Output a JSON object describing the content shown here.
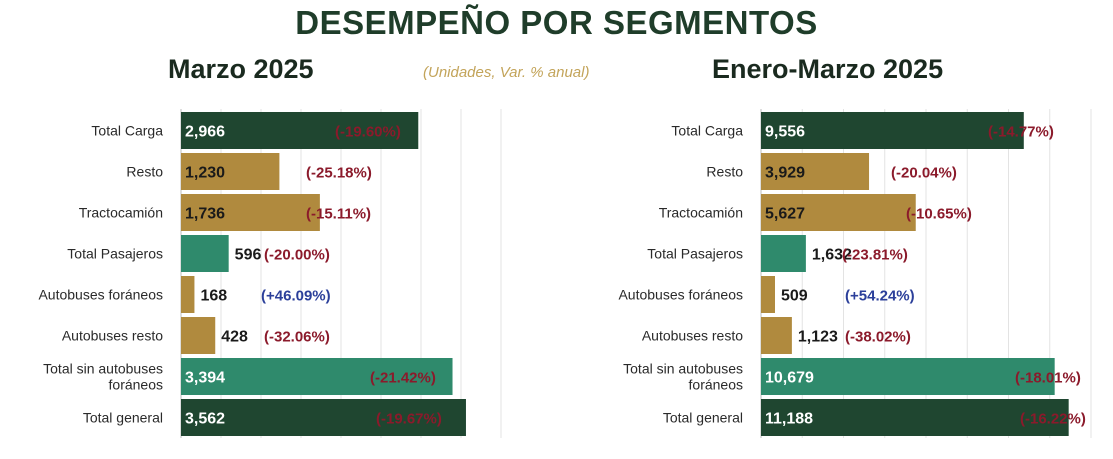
{
  "header": {
    "title": "DESEMPEÑO POR SEGMENTOS",
    "units_note": "(Unidades, Var. % anual)"
  },
  "colors": {
    "dark_green": "#1f4630",
    "gold": "#b08a3e",
    "teal": "#2f8a6c",
    "negative": "#8b1a2b",
    "positive": "#2b3f9a"
  },
  "chart_data": [
    {
      "type": "bar",
      "orientation": "horizontal",
      "title": "Marzo 2025",
      "categories": [
        "Total Carga",
        "Resto",
        "Tractocamión",
        "Total Pasajeros",
        "Autobuses foráneos",
        "Autobuses resto",
        "Total sin autobuses foráneos",
        "Total general"
      ],
      "values": [
        2966,
        1230,
        1736,
        596,
        168,
        428,
        3394,
        3562
      ],
      "value_labels": [
        "2,966",
        "1,230",
        "1,736",
        "596",
        "168",
        "428",
        "3,394",
        "3,562"
      ],
      "changes": [
        "(-19.60%)",
        "(-25.18%)",
        "(-15.11%)",
        "(-20.00%)",
        "(+46.09%)",
        "(-32.06%)",
        "(-21.42%)",
        "(-19.67%)"
      ],
      "bar_colors": [
        "dark_green",
        "gold",
        "gold",
        "teal",
        "gold",
        "gold",
        "teal",
        "dark_green"
      ],
      "xlim": [
        0,
        4000
      ],
      "grid": true
    },
    {
      "type": "bar",
      "orientation": "horizontal",
      "title": "Enero-Marzo 2025",
      "categories": [
        "Total Carga",
        "Resto",
        "Tractocamión",
        "Total Pasajeros",
        "Autobuses foráneos",
        "Autobuses resto",
        "Total sin autobuses foráneos",
        "Total general"
      ],
      "values": [
        9556,
        3929,
        5627,
        1632,
        509,
        1123,
        10679,
        11188
      ],
      "value_labels": [
        "9,556",
        "3,929",
        "5,627",
        "1,632",
        "509",
        "1,123",
        "10,679",
        "11,188"
      ],
      "changes": [
        "(-14.77%)",
        "(-20.04%)",
        "(-10.65%)",
        "(-23.81%)",
        "(+54.24%)",
        "(-38.02%)",
        "(-18.01%)",
        "(-16.22%)"
      ],
      "bar_colors": [
        "dark_green",
        "gold",
        "gold",
        "teal",
        "gold",
        "gold",
        "teal",
        "dark_green"
      ],
      "xlim": [
        0,
        12000
      ],
      "grid": true
    }
  ]
}
